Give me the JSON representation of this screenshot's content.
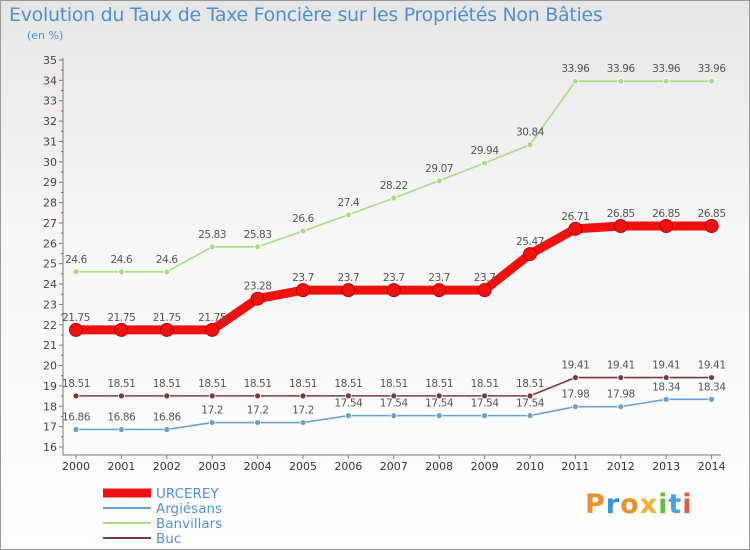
{
  "title": "Evolution du Taux de Taxe Foncière sur les Propriétés Non Bâties",
  "subtitle": "(en %)",
  "logo": {
    "letters": [
      "P",
      "r",
      "o",
      "x",
      "i",
      "t",
      "i"
    ],
    "colors": [
      "#e8902a",
      "#3d8fd8",
      "#e8902a",
      "#f0b030",
      "#6cb842",
      "#4aa0e0",
      "#e05a40"
    ]
  },
  "chart_data": {
    "type": "line",
    "categories": [
      "2000",
      "2001",
      "2002",
      "2003",
      "2004",
      "2005",
      "2006",
      "2007",
      "2008",
      "2009",
      "2010",
      "2011",
      "2012",
      "2013",
      "2014"
    ],
    "ylim": [
      16,
      35
    ],
    "yticks": [
      "16",
      "17",
      "18",
      "19",
      "20",
      "21",
      "22",
      "23",
      "24",
      "25",
      "26",
      "27",
      "28",
      "29",
      "30",
      "31",
      "32",
      "33",
      "34",
      "35"
    ],
    "grid": false,
    "legend_position": "bottom-left",
    "series": [
      {
        "name": "URCEREY",
        "color": "#ee1111",
        "width": "thick",
        "values": [
          21.75,
          21.75,
          21.75,
          21.75,
          23.28,
          23.7,
          23.7,
          23.7,
          23.7,
          23.7,
          25.47,
          26.71,
          26.85,
          26.85,
          26.85
        ],
        "labels": [
          "21.75",
          "21.75",
          "21.75",
          "21.75",
          "23.28",
          "23.7",
          "23.7",
          "23.7",
          "23.7",
          "23.7",
          "25.47",
          "26.71",
          "26.85",
          "26.85",
          "26.85"
        ]
      },
      {
        "name": "Argiésans",
        "color": "#6b9fcf",
        "width": "thin",
        "values": [
          16.86,
          16.86,
          16.86,
          17.2,
          17.2,
          17.2,
          17.54,
          17.54,
          17.54,
          17.54,
          17.54,
          17.98,
          17.98,
          18.34,
          18.34
        ],
        "labels": [
          "16.86",
          "16.86",
          "16.86",
          "17.2",
          "17.2",
          "17.2",
          "17.54",
          "17.54",
          "17.54",
          "17.54",
          "17.54",
          "17.98",
          "17.98",
          "18.34",
          "18.34"
        ]
      },
      {
        "name": "Banvillars",
        "color": "#a8dc86",
        "width": "thin",
        "values": [
          24.6,
          24.6,
          24.6,
          25.83,
          25.83,
          26.6,
          27.4,
          28.22,
          29.07,
          29.94,
          30.84,
          33.96,
          33.96,
          33.96,
          33.96
        ],
        "labels": [
          "24.6",
          "24.6",
          "24.6",
          "25.83",
          "25.83",
          "26.6",
          "27.4",
          "28.22",
          "29.07",
          "29.94",
          "30.84",
          "33.96",
          "33.96",
          "33.96",
          "33.96"
        ]
      },
      {
        "name": "Buc",
        "color": "#7a3a3a",
        "width": "thin",
        "values": [
          18.51,
          18.51,
          18.51,
          18.51,
          18.51,
          18.51,
          18.51,
          18.51,
          18.51,
          18.51,
          18.51,
          19.41,
          19.41,
          19.41,
          19.41
        ],
        "labels": [
          "18.51",
          "18.51",
          "18.51",
          "18.51",
          "18.51",
          "18.51",
          "18.51",
          "18.51",
          "18.51",
          "18.51",
          "18.51",
          "19.41",
          "19.41",
          "19.41",
          "19.41"
        ]
      }
    ]
  }
}
